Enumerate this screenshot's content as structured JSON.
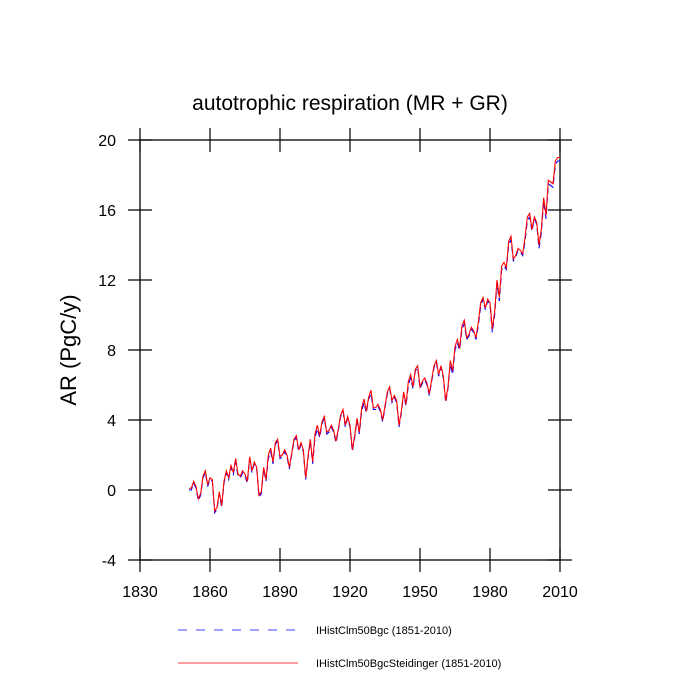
{
  "chart_data": {
    "type": "line",
    "title": "autotrophic respiration (MR + GR)",
    "y_label": "AR  (PgC/y)",
    "xlim": [
      1830,
      2010
    ],
    "xticks": [
      1830,
      1860,
      1890,
      1920,
      1950,
      1980,
      2010
    ],
    "ylim": [
      -4,
      20
    ],
    "yticks": [
      -4,
      0,
      4,
      8,
      12,
      16,
      20
    ],
    "x": [
      1851,
      1852,
      1853,
      1854,
      1855,
      1856,
      1857,
      1858,
      1859,
      1860,
      1861,
      1862,
      1863,
      1864,
      1865,
      1866,
      1867,
      1868,
      1869,
      1870,
      1871,
      1872,
      1873,
      1874,
      1875,
      1876,
      1877,
      1878,
      1879,
      1880,
      1881,
      1882,
      1883,
      1884,
      1885,
      1886,
      1887,
      1888,
      1889,
      1890,
      1891,
      1892,
      1893,
      1894,
      1895,
      1896,
      1897,
      1898,
      1899,
      1900,
      1901,
      1902,
      1903,
      1904,
      1905,
      1906,
      1907,
      1908,
      1909,
      1910,
      1911,
      1912,
      1913,
      1914,
      1915,
      1916,
      1917,
      1918,
      1919,
      1920,
      1921,
      1922,
      1923,
      1924,
      1925,
      1926,
      1927,
      1928,
      1929,
      1930,
      1931,
      1932,
      1933,
      1934,
      1935,
      1936,
      1937,
      1938,
      1939,
      1940,
      1941,
      1942,
      1943,
      1944,
      1945,
      1946,
      1947,
      1948,
      1949,
      1950,
      1951,
      1952,
      1953,
      1954,
      1955,
      1956,
      1957,
      1958,
      1959,
      1960,
      1961,
      1962,
      1963,
      1964,
      1965,
      1966,
      1967,
      1968,
      1969,
      1970,
      1971,
      1972,
      1973,
      1974,
      1975,
      1976,
      1977,
      1978,
      1979,
      1980,
      1981,
      1982,
      1983,
      1984,
      1985,
      1986,
      1987,
      1988,
      1989,
      1990,
      1991,
      1992,
      1993,
      1994,
      1995,
      1996,
      1997,
      1998,
      1999,
      2000,
      2001,
      2002,
      2003,
      2004,
      2005,
      2006,
      2007,
      2008,
      2009,
      2010
    ],
    "series": [
      {
        "name": "IHistClm50Bgc (1851-2010)",
        "color": "#0000ff",
        "dash": true,
        "values": [
          0,
          0,
          0.4,
          0.1,
          -0.6,
          -0.3,
          0.7,
          1.0,
          0.2,
          0.6,
          0.5,
          -1.3,
          -1.1,
          -0.2,
          -1.0,
          0.4,
          1.0,
          0.6,
          1.3,
          0.9,
          1.6,
          0.8,
          0.7,
          1.0,
          0.8,
          0.4,
          1.8,
          1.0,
          1.5,
          1.2,
          -0.4,
          -0.2,
          1.2,
          0.5,
          1.8,
          2.2,
          1.5,
          2.6,
          2.8,
          1.8,
          1.9,
          2.2,
          1.9,
          1.2,
          2.0,
          2.8,
          3.0,
          2.2,
          2.6,
          2.2,
          0.6,
          1.8,
          2.8,
          1.5,
          3.0,
          3.5,
          3.0,
          3.8,
          4.1,
          3.2,
          3.3,
          3.6,
          3.3,
          2.7,
          3.4,
          4.2,
          4.5,
          3.6,
          4.1,
          3.6,
          2.2,
          3.0,
          4.0,
          3.2,
          4.5,
          5.0,
          4.4,
          5.2,
          5.5,
          4.6,
          4.6,
          4.8,
          4.5,
          3.9,
          4.7,
          5.5,
          5.8,
          5.0,
          5.3,
          5.0,
          3.6,
          4.4,
          5.5,
          4.8,
          6.0,
          6.4,
          5.8,
          6.8,
          7.0,
          5.8,
          6.1,
          6.3,
          6.0,
          5.4,
          6.2,
          7.0,
          7.3,
          6.5,
          7.0,
          6.4,
          5.0,
          5.8,
          7.2,
          6.6,
          8.0,
          8.4,
          8.0,
          9.2,
          9.5,
          8.6,
          8.8,
          9.2,
          9.0,
          8.6,
          9.4,
          10.5,
          10.9,
          10.3,
          10.8,
          10.6,
          9.0,
          10.0,
          11.8,
          10.8,
          12.6,
          12.8,
          12.6,
          14.0,
          14.3,
          13.1,
          13.3,
          13.7,
          13.6,
          13.4,
          14.2,
          15.4,
          15.6,
          14.8,
          15.5,
          15.2,
          13.8,
          14.7,
          16.5,
          15.5,
          17.5,
          17.4,
          17.3,
          18.6,
          18.8,
          18.8
        ]
      },
      {
        "name": "IHistClm50BgcSteidinger (1851-2010)",
        "color": "#ff0000",
        "dash": false,
        "values": [
          0.1,
          0.1,
          0.5,
          0.2,
          -0.5,
          -0.2,
          0.8,
          1.1,
          0.3,
          0.7,
          0.6,
          -1.2,
          -1.0,
          -0.1,
          -0.9,
          0.5,
          1.1,
          0.7,
          1.4,
          1.0,
          1.8,
          0.9,
          0.8,
          1.1,
          0.9,
          0.5,
          1.9,
          1.1,
          1.6,
          1.3,
          -0.3,
          -0.1,
          1.3,
          0.6,
          2.0,
          2.4,
          1.6,
          2.7,
          2.9,
          1.9,
          2.0,
          2.3,
          2.0,
          1.3,
          2.1,
          2.9,
          3.1,
          2.3,
          2.7,
          2.3,
          0.7,
          1.9,
          2.9,
          1.6,
          3.2,
          3.7,
          3.1,
          3.9,
          4.2,
          3.3,
          3.4,
          3.7,
          3.4,
          2.8,
          3.5,
          4.3,
          4.6,
          3.7,
          4.2,
          3.7,
          2.3,
          3.1,
          4.1,
          3.3,
          4.7,
          5.2,
          4.5,
          5.3,
          5.7,
          4.7,
          4.7,
          4.9,
          4.6,
          4.0,
          4.8,
          5.6,
          5.9,
          5.1,
          5.4,
          5.1,
          3.7,
          4.5,
          5.6,
          4.9,
          6.2,
          6.6,
          5.9,
          6.9,
          7.1,
          5.9,
          6.2,
          6.4,
          6.1,
          5.5,
          6.3,
          7.1,
          7.4,
          6.6,
          7.1,
          6.5,
          5.1,
          5.9,
          7.4,
          6.8,
          8.2,
          8.6,
          8.1,
          9.4,
          9.7,
          8.7,
          8.9,
          9.3,
          9.1,
          8.7,
          9.6,
          10.7,
          11.0,
          10.4,
          10.9,
          10.7,
          9.2,
          10.2,
          12.0,
          11.0,
          12.8,
          13.0,
          12.7,
          14.2,
          14.5,
          13.2,
          13.4,
          13.8,
          13.7,
          13.5,
          14.4,
          15.6,
          15.8,
          14.9,
          15.6,
          15.3,
          14.0,
          14.9,
          16.7,
          15.7,
          17.7,
          17.6,
          17.5,
          18.8,
          19.0,
          19.0
        ]
      }
    ]
  }
}
